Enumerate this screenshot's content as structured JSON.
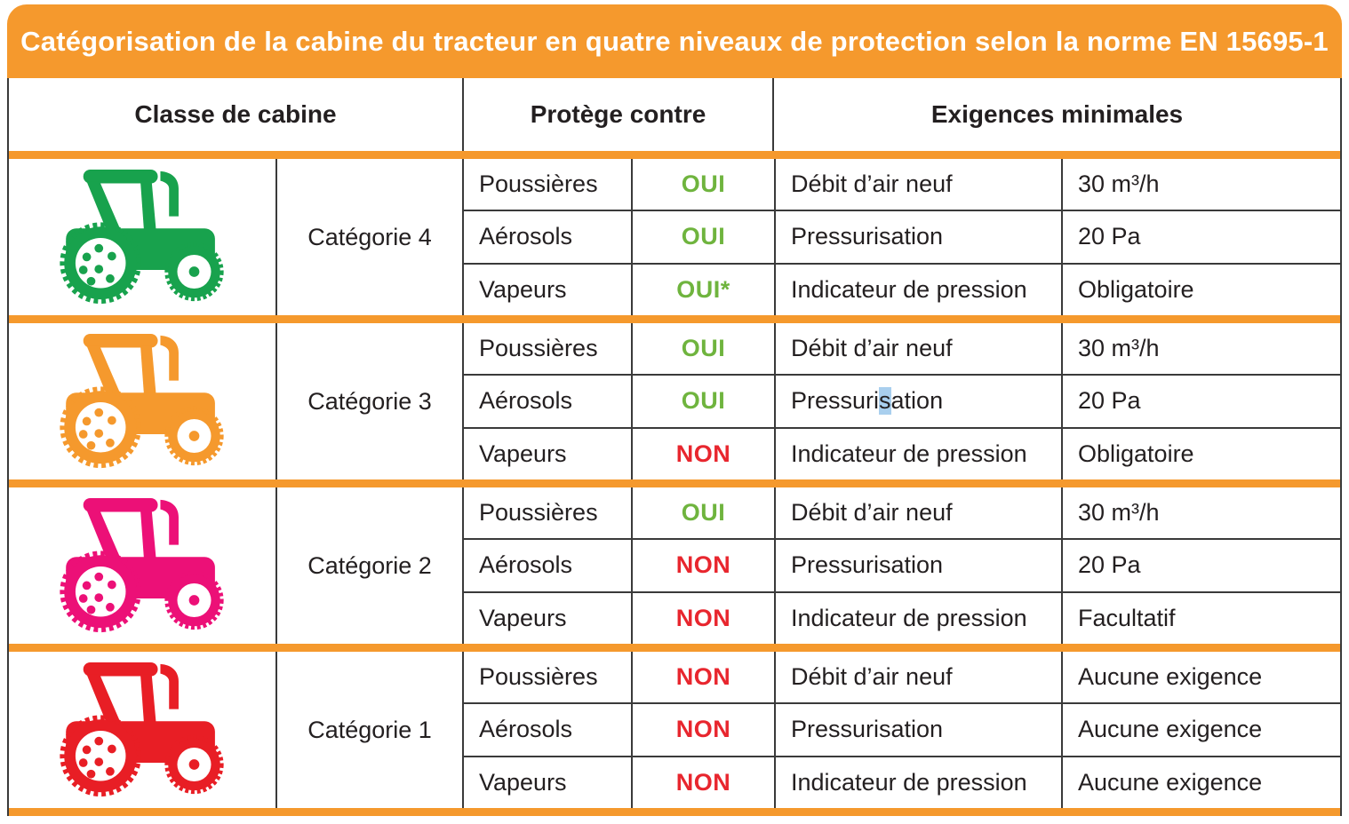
{
  "title": "Catégorisation de la cabine du tracteur en quatre niveaux de protection selon la norme EN 15695-1",
  "columns": [
    "Classe de cabine",
    "Protège contre",
    "Exigences minimales"
  ],
  "colors": {
    "accent_orange": "#F5992D",
    "border": "#3A3A3A",
    "text": "#231F20",
    "oui_green": "#6FB43E",
    "non_red": "#E8262E",
    "selection_highlight_blue": "#A9CFEE"
  },
  "categories": [
    {
      "name": "Catégorie 4",
      "tractor_icon": "tractor-icon-green",
      "tractor_color": "#18A24D",
      "rows": [
        {
          "hazard": "Poussières",
          "protected": "OUI",
          "requirement": "Débit d’air neuf",
          "value": "30 m³/h"
        },
        {
          "hazard": "Aérosols",
          "protected": "OUI",
          "requirement": "Pressurisation",
          "value": "20 Pa"
        },
        {
          "hazard": "Vapeurs",
          "protected": "OUI*",
          "requirement": "Indicateur de pression",
          "value": "Obligatoire"
        }
      ]
    },
    {
      "name": "Catégorie 3",
      "tractor_icon": "tractor-icon-orange",
      "tractor_color": "#F5992D",
      "rows": [
        {
          "hazard": "Poussières",
          "protected": "OUI",
          "requirement": "Débit d’air neuf",
          "value": "30 m³/h"
        },
        {
          "hazard": "Aérosols",
          "protected": "OUI",
          "requirement": "Pressurisation",
          "requirement_parts": {
            "pre": "Pressuri",
            "highlight": "s",
            "post": "ation"
          },
          "value": "20 Pa"
        },
        {
          "hazard": "Vapeurs",
          "protected": "NON",
          "requirement": "Indicateur de pression",
          "value": "Obligatoire"
        }
      ]
    },
    {
      "name": "Catégorie 2",
      "tractor_icon": "tractor-icon-pink",
      "tractor_color": "#EC1077",
      "rows": [
        {
          "hazard": "Poussières",
          "protected": "OUI",
          "requirement": "Débit d’air neuf",
          "value": "30 m³/h"
        },
        {
          "hazard": "Aérosols",
          "protected": "NON",
          "requirement": "Pressurisation",
          "value": "20 Pa"
        },
        {
          "hazard": "Vapeurs",
          "protected": "NON",
          "requirement": "Indicateur de pression",
          "value": "Facultatif"
        }
      ]
    },
    {
      "name": "Catégorie 1",
      "tractor_icon": "tractor-icon-red",
      "tractor_color": "#E81E25",
      "rows": [
        {
          "hazard": "Poussières",
          "protected": "NON",
          "requirement": "Débit d’air neuf",
          "value": "Aucune exigence"
        },
        {
          "hazard": "Aérosols",
          "protected": "NON",
          "requirement": "Pressurisation",
          "value": "Aucune exigence"
        },
        {
          "hazard": "Vapeurs",
          "protected": "NON",
          "requirement": "Indicateur de pression",
          "value": "Aucune exigence"
        }
      ]
    }
  ]
}
